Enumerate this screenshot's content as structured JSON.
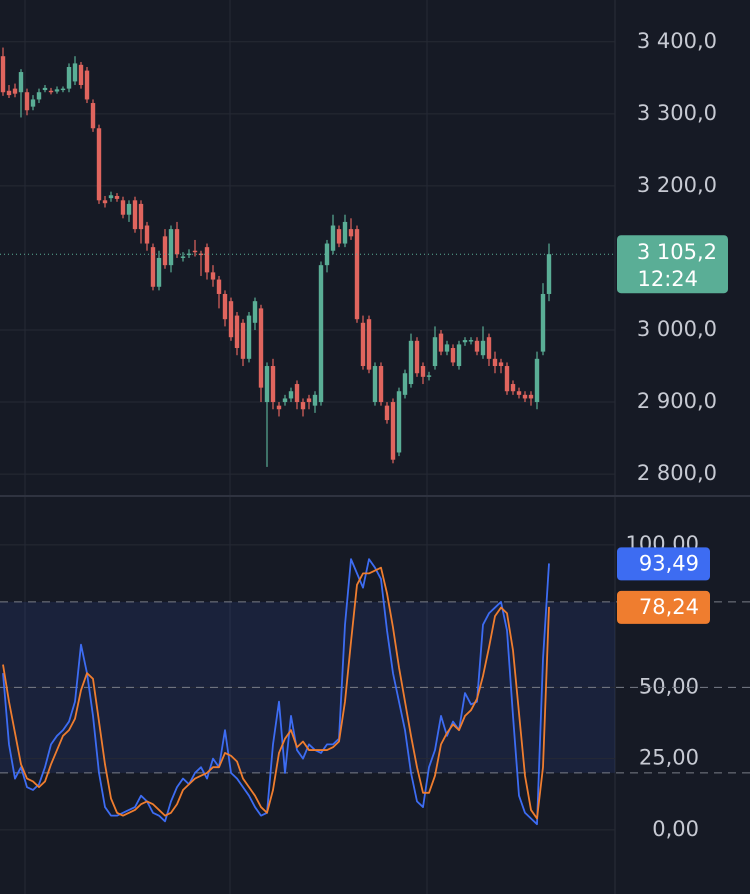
{
  "chart_data": [
    {
      "type": "candlestick",
      "open": [
        3380,
        3332,
        3335,
        3330,
        3330,
        3310,
        3320,
        3333,
        3332,
        3331,
        3333,
        3335,
        3345,
        3368,
        3360,
        3315,
        3280,
        3180,
        3183,
        3186,
        3180,
        3160,
        3180,
        3175,
        3145,
        3115,
        3060,
        3130,
        3090,
        3140,
        3100,
        3104,
        3110,
        3106,
        3115,
        3080,
        3070,
        3050,
        3040,
        3020,
        3010,
        2960,
        3010,
        3030,
        2900,
        2950,
        2895,
        2900,
        2905,
        2925,
        2900,
        2905,
        2895,
        2900,
        3090,
        3110,
        3140,
        3120,
        3140,
        3140,
        3010,
        3015,
        2900,
        2950,
        2895,
        2900,
        2830,
        2910,
        2925,
        2985,
        2950,
        2935,
        2950,
        2995,
        2970,
        2975,
        2950,
        2983,
        2984,
        2985,
        2965,
        2990,
        2960,
        2955,
        2950,
        2925,
        2915,
        2910,
        2910,
        2900,
        2970,
        3050
      ],
      "high": [
        3392,
        3340,
        3342,
        3362,
        3335,
        3326,
        3335,
        3340,
        3336,
        3338,
        3338,
        3370,
        3380,
        3372,
        3365,
        3320,
        3285,
        3186,
        3192,
        3190,
        3185,
        3180,
        3185,
        3180,
        3150,
        3120,
        3110,
        3140,
        3145,
        3150,
        3108,
        3112,
        3125,
        3110,
        3120,
        3090,
        3075,
        3055,
        3045,
        3025,
        3015,
        3025,
        3045,
        3035,
        2955,
        2960,
        2900,
        2910,
        2920,
        2930,
        2905,
        2910,
        2915,
        3095,
        3125,
        3160,
        3145,
        3160,
        3155,
        3145,
        3020,
        3020,
        2955,
        2955,
        2900,
        2905,
        2920,
        2945,
        2995,
        2990,
        2955,
        2942,
        3005,
        3000,
        2985,
        2980,
        2985,
        2990,
        2990,
        2990,
        3005,
        2995,
        2970,
        2960,
        2955,
        2930,
        2920,
        2915,
        2915,
        2970,
        3065,
        3120
      ],
      "low": [
        3325,
        3322,
        3323,
        3295,
        3298,
        3305,
        3315,
        3330,
        3327,
        3328,
        3330,
        3330,
        3340,
        3335,
        3315,
        3275,
        3175,
        3170,
        3178,
        3178,
        3155,
        3150,
        3135,
        3120,
        3110,
        3055,
        3055,
        3085,
        3080,
        3100,
        3095,
        3100,
        3102,
        3075,
        3070,
        3060,
        3030,
        3005,
        2985,
        2965,
        2950,
        2955,
        3000,
        2900,
        2810,
        2890,
        2880,
        2895,
        2900,
        2890,
        2880,
        2890,
        2885,
        2895,
        3080,
        3105,
        3115,
        3115,
        3125,
        3010,
        2945,
        2940,
        2895,
        2895,
        2870,
        2815,
        2825,
        2905,
        2920,
        2935,
        2925,
        2930,
        2945,
        2965,
        2965,
        2950,
        2945,
        2978,
        2980,
        2965,
        2960,
        2950,
        2940,
        2940,
        2910,
        2910,
        2905,
        2900,
        2895,
        2890,
        2965,
        3040
      ],
      "close": [
        3330,
        3326,
        3328,
        3358,
        3305,
        3320,
        3330,
        3336,
        3330,
        3334,
        3335,
        3365,
        3370,
        3340,
        3320,
        3280,
        3180,
        3176,
        3187,
        3182,
        3160,
        3175,
        3140,
        3140,
        3120,
        3060,
        3100,
        3090,
        3140,
        3105,
        3102,
        3106,
        3108,
        3104,
        3080,
        3070,
        3050,
        3015,
        2990,
        2975,
        2960,
        3020,
        3040,
        2920,
        2950,
        2900,
        2890,
        2905,
        2915,
        2900,
        2890,
        2900,
        2910,
        3090,
        3120,
        3145,
        3120,
        3150,
        3130,
        3015,
        2950,
        2945,
        2950,
        2900,
        2875,
        2820,
        2915,
        2940,
        2985,
        2940,
        2935,
        2937,
        2990,
        2970,
        2980,
        2955,
        2980,
        2986,
        2986,
        2970,
        2985,
        2960,
        2950,
        2950,
        2915,
        2915,
        2910,
        2905,
        2905,
        2960,
        3050,
        3105.2
      ],
      "up_color": "#5aae96",
      "down_color": "#e0655e",
      "ylim": [
        2771,
        3458
      ],
      "yticks": [
        {
          "value": 2800,
          "label": "2 800,0"
        },
        {
          "value": 2900,
          "label": "2 900,0"
        },
        {
          "value": 3000,
          "label": "3 000,0"
        },
        {
          "value": 3200,
          "label": "3 200,0"
        },
        {
          "value": 3300,
          "label": "3 300,0"
        },
        {
          "value": 3400,
          "label": "3 400,0"
        }
      ],
      "last_price": {
        "value": 3105.2,
        "label": "3 105,2"
      },
      "countdown": "12:24",
      "grid": true
    },
    {
      "type": "line",
      "series": [
        {
          "color": "#3d6cf2",
          "values": [
            55,
            30,
            18,
            22,
            15,
            14,
            16,
            22,
            30,
            33,
            35,
            38,
            45,
            65,
            55,
            40,
            20,
            8,
            5,
            5,
            6,
            7,
            8,
            12,
            10,
            6,
            5,
            3,
            10,
            15,
            18,
            16,
            20,
            22,
            18,
            25,
            22,
            35,
            20,
            18,
            15,
            12,
            8,
            5,
            6,
            30,
            45,
            20,
            40,
            28,
            25,
            30,
            28,
            27,
            30,
            30,
            32,
            72,
            95,
            90,
            85,
            95,
            92,
            88,
            70,
            55,
            45,
            35,
            20,
            10,
            8,
            22,
            28,
            40,
            33,
            38,
            35,
            48,
            44,
            45,
            72,
            76,
            78,
            80,
            70,
            40,
            12,
            6,
            4,
            2,
            60,
            93.49
          ],
          "last": {
            "value": 93.49,
            "label": "93,49"
          }
        },
        {
          "color": "#ef7d2f",
          "values": [
            58,
            45,
            34,
            23,
            18,
            17,
            15,
            17,
            23,
            28,
            33,
            35,
            39,
            49,
            55,
            53,
            38,
            23,
            11,
            6,
            5,
            6,
            7,
            9,
            10,
            9,
            7,
            5,
            6,
            9,
            14,
            16,
            18,
            19,
            20,
            22,
            22,
            27,
            26,
            24,
            18,
            15,
            12,
            8,
            6,
            14,
            27,
            32,
            35,
            29,
            31,
            28,
            28,
            28,
            28,
            29,
            31,
            45,
            66,
            86,
            90,
            90,
            91,
            92,
            83,
            71,
            57,
            45,
            33,
            22,
            13,
            13,
            19,
            30,
            34,
            37,
            35,
            40,
            42,
            46,
            54,
            64,
            75,
            78,
            76,
            63,
            41,
            19,
            7,
            4,
            22,
            78.24
          ],
          "last": {
            "value": 78.24,
            "label": "78,24"
          }
        }
      ],
      "ylim": [
        -22.5,
        116.8
      ],
      "yticks": [
        {
          "value": 0,
          "label": "0,00"
        },
        {
          "value": 25,
          "label": "25,00"
        },
        {
          "value": 50,
          "label": "50,00"
        },
        {
          "value": 100,
          "label": "100,00"
        }
      ],
      "levels": [
        20,
        50,
        80
      ],
      "band": [
        20,
        80
      ],
      "grid": true
    }
  ]
}
